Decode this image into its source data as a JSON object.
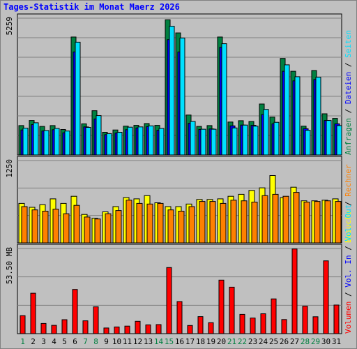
{
  "title": "Tages-Statistik im Monat Maerz 2026",
  "colors": {
    "anfragen": "#008040",
    "dateien": "#0000ff",
    "seiten": "#00e0ff",
    "besuche": "#ffff00",
    "rechner": "#ff8000",
    "volumen": "#ff0000",
    "weekday_label": "#000000",
    "weekend_label": "#008040",
    "background": "#c0c0c0",
    "grid": "#808080"
  },
  "chart_data": [
    {
      "type": "bar",
      "panel": "top",
      "ymax_label": "5259",
      "ymax": 5259,
      "categories": [
        "1",
        "2",
        "3",
        "4",
        "5",
        "6",
        "7",
        "8",
        "9",
        "10",
        "11",
        "12",
        "13",
        "14",
        "15",
        "16",
        "17",
        "18",
        "19",
        "20",
        "21",
        "22",
        "23",
        "24",
        "25",
        "26",
        "27",
        "28",
        "29",
        "30",
        "31"
      ],
      "weekend_days": [
        "1",
        "7",
        "8",
        "14",
        "15",
        "21",
        "22",
        "28",
        "29"
      ],
      "legend": [
        "Anfragen",
        "Dateien",
        "Seiten"
      ],
      "series": [
        {
          "name": "Anfragen",
          "values": [
            1140,
            1340,
            1110,
            1140,
            990,
            4580,
            1210,
            1720,
            880,
            970,
            1120,
            1150,
            1220,
            1150,
            5250,
            4740,
            1550,
            1110,
            1140,
            4580,
            1280,
            1330,
            1300,
            1980,
            1470,
            3750,
            3250,
            1120,
            3280,
            1600,
            1420
          ]
        },
        {
          "name": "Dateien",
          "values": [
            970,
            1180,
            930,
            980,
            860,
            4000,
            1090,
            1400,
            790,
            850,
            980,
            1050,
            1100,
            960,
            4480,
            4000,
            1230,
            990,
            1010,
            4180,
            1130,
            1160,
            1150,
            1570,
            1210,
            3250,
            2880,
            1020,
            2930,
            1340,
            1210
          ]
        },
        {
          "name": "Seiten",
          "values": [
            1040,
            1250,
            950,
            1030,
            930,
            4380,
            1070,
            1530,
            830,
            880,
            1080,
            1090,
            1130,
            1030,
            5000,
            4540,
            1300,
            1000,
            1000,
            4320,
            1050,
            1160,
            1120,
            1770,
            1270,
            3500,
            3040,
            960,
            3020,
            1340,
            1140
          ]
        }
      ]
    },
    {
      "type": "bar",
      "panel": "middle",
      "ymax_label": "1250",
      "ymax": 1250,
      "categories": [
        "1",
        "2",
        "3",
        "4",
        "5",
        "6",
        "7",
        "8",
        "9",
        "10",
        "11",
        "12",
        "13",
        "14",
        "15",
        "16",
        "17",
        "18",
        "19",
        "20",
        "21",
        "22",
        "23",
        "24",
        "25",
        "26",
        "27",
        "28",
        "29",
        "30",
        "31"
      ],
      "legend": [
        "Besuche",
        "Rechner"
      ],
      "series": [
        {
          "name": "Besuche",
          "values": [
            610,
            550,
            590,
            680,
            610,
            720,
            440,
            380,
            480,
            560,
            700,
            680,
            730,
            620,
            560,
            560,
            600,
            670,
            670,
            680,
            720,
            750,
            810,
            850,
            1040,
            700,
            860,
            650,
            650,
            660,
            680
          ]
        },
        {
          "name": "Rechner",
          "values": [
            560,
            510,
            490,
            520,
            450,
            580,
            400,
            370,
            450,
            500,
            660,
            610,
            600,
            610,
            510,
            490,
            560,
            640,
            640,
            610,
            660,
            650,
            630,
            730,
            750,
            720,
            780,
            630,
            640,
            650,
            640
          ]
        }
      ]
    },
    {
      "type": "bar",
      "panel": "bottom",
      "ymax_label": "53.50 MB",
      "ymax": 53.5,
      "categories": [
        "1",
        "2",
        "3",
        "4",
        "5",
        "6",
        "7",
        "8",
        "9",
        "10",
        "11",
        "12",
        "13",
        "14",
        "15",
        "16",
        "17",
        "18",
        "19",
        "20",
        "21",
        "22",
        "23",
        "24",
        "25",
        "26",
        "27",
        "28",
        "29",
        "30",
        "31"
      ],
      "legend": [
        "Volumen",
        "Vol. In",
        "Vol. Out"
      ],
      "series": [
        {
          "name": "Volumen",
          "values": [
            11.5,
            25.8,
            6.5,
            5.3,
            8.9,
            28.2,
            8.2,
            17.1,
            3.6,
            4.3,
            4.8,
            7.9,
            5.6,
            5.8,
            42.2,
            20.5,
            5.2,
            10.9,
            7.0,
            34.2,
            29.7,
            12.3,
            10.0,
            12.7,
            22.2,
            9.0,
            54.1,
            17.5,
            10.8,
            46.5,
            18.3
          ]
        }
      ]
    }
  ]
}
